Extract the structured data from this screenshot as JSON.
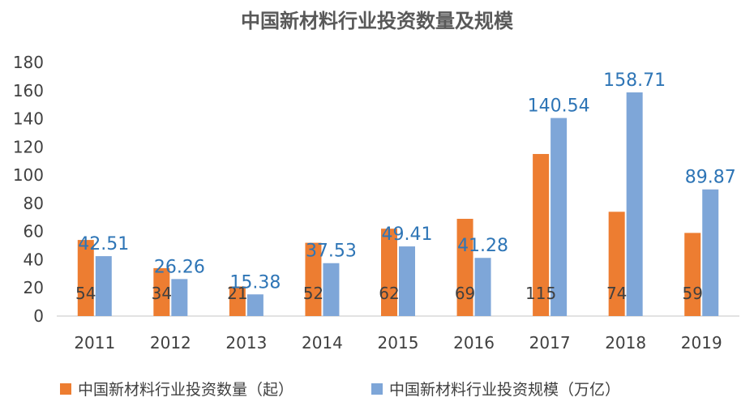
{
  "chart_data": {
    "type": "bar",
    "title": "中国新材料行业投资数量及规模",
    "categories": [
      "2011",
      "2012",
      "2013",
      "2014",
      "2015",
      "2016",
      "2017",
      "2018",
      "2019"
    ],
    "series": [
      {
        "name": "中国新材料行业投资数量（起）",
        "color": "#ED7D31",
        "values": [
          54,
          34,
          21,
          52,
          62,
          69,
          115,
          74,
          59
        ]
      },
      {
        "name": "中国新材料行业投资规模（万亿）",
        "color": "#7EA6D8",
        "values": [
          42.51,
          26.26,
          15.38,
          37.53,
          49.41,
          41.28,
          140.54,
          158.71,
          89.87
        ]
      }
    ],
    "series_labels": [
      [
        "54",
        "34",
        "21",
        "52",
        "62",
        "69",
        "115",
        "74",
        "59"
      ],
      [
        "42.51",
        "26.26",
        "15.38",
        "37.53",
        "49.41",
        "41.28",
        "140.54",
        "158.71",
        "89.87"
      ]
    ],
    "ylim": [
      0,
      180
    ],
    "yticks": [
      0,
      20,
      40,
      60,
      80,
      100,
      120,
      140,
      160,
      180
    ],
    "xlabel": "",
    "ylabel": "",
    "grid": false,
    "legend_position": "bottom"
  }
}
